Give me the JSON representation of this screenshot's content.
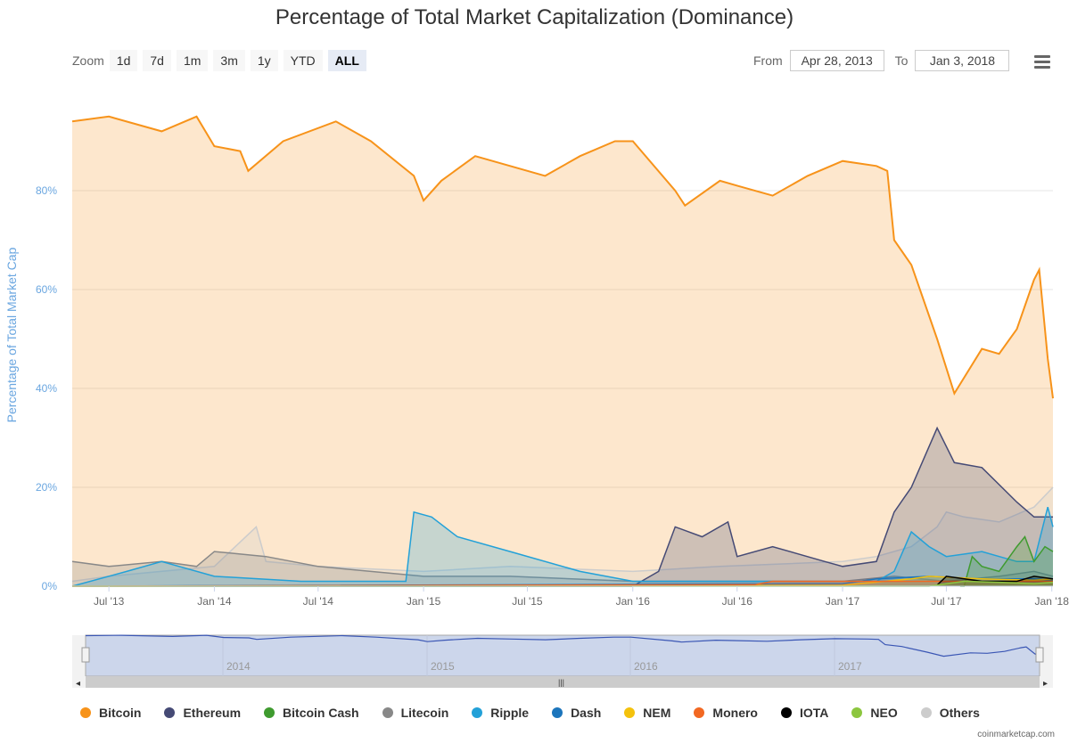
{
  "chart_title": "Percentage of Total Market Capitalization (Dominance)",
  "toolbar": {
    "zoom_label": "Zoom",
    "zoom_buttons": [
      "1d",
      "7d",
      "1m",
      "3m",
      "1y",
      "YTD",
      "ALL"
    ],
    "active_zoom": "ALL",
    "from_label": "From",
    "from_value": "Apr 28, 2013",
    "to_label": "To",
    "to_value": "Jan 3, 2018",
    "menu_icon": "hamburger-menu-icon"
  },
  "navigator": {
    "year_labels": [
      "2014",
      "2015",
      "2016",
      "2017"
    ]
  },
  "credit": "coinmarketcap.com",
  "chart_data": {
    "type": "area",
    "title": "Percentage of Total Market Capitalization (Dominance)",
    "xlabel": "",
    "ylabel": "Percentage of Total Market Cap",
    "x_range": [
      "2013-04-28",
      "2018-01-03"
    ],
    "ylim": [
      0,
      100
    ],
    "y_ticks": [
      0,
      20,
      40,
      60,
      80
    ],
    "y_tick_labels": [
      "0%",
      "20%",
      "40%",
      "60%",
      "80%"
    ],
    "x_tick_labels": [
      "Jul '13",
      "Jan '14",
      "Jul '14",
      "Jan '15",
      "Jul '15",
      "Jan '16",
      "Jul '16",
      "Jan '17",
      "Jul '17",
      "Jan '18"
    ],
    "x_tick_dates": [
      "2013-07-01",
      "2014-01-01",
      "2014-07-01",
      "2015-01-01",
      "2015-07-01",
      "2016-01-01",
      "2016-07-01",
      "2017-01-01",
      "2017-07-01",
      "2018-01-01"
    ],
    "grid": true,
    "legend_position": "bottom",
    "series": [
      {
        "name": "Bitcoin",
        "color": "#f7931a",
        "x": [
          "2013-04-28",
          "2013-07-01",
          "2013-10-01",
          "2013-12-01",
          "2014-01-01",
          "2014-02-15",
          "2014-03-01",
          "2014-05-01",
          "2014-08-01",
          "2014-10-01",
          "2014-12-15",
          "2015-01-01",
          "2015-02-01",
          "2015-04-01",
          "2015-06-01",
          "2015-08-01",
          "2015-10-01",
          "2015-12-01",
          "2016-01-01",
          "2016-03-15",
          "2016-04-01",
          "2016-06-01",
          "2016-07-01",
          "2016-09-01",
          "2016-11-01",
          "2017-01-01",
          "2017-03-01",
          "2017-03-20",
          "2017-04-01",
          "2017-05-01",
          "2017-06-15",
          "2017-07-15",
          "2017-09-01",
          "2017-10-01",
          "2017-11-01",
          "2017-12-01",
          "2017-12-10",
          "2017-12-25",
          "2018-01-03"
        ],
        "values": [
          94,
          95,
          92,
          95,
          89,
          88,
          84,
          90,
          94,
          90,
          83,
          78,
          82,
          87,
          85,
          83,
          87,
          90,
          90,
          80,
          77,
          82,
          81,
          79,
          83,
          86,
          85,
          84,
          70,
          65,
          50,
          39,
          48,
          47,
          52,
          62,
          64,
          46,
          38
        ]
      },
      {
        "name": "Ethereum",
        "color": "#454a75",
        "x": [
          "2013-04-28",
          "2015-08-01",
          "2016-01-01",
          "2016-02-15",
          "2016-03-15",
          "2016-05-01",
          "2016-06-15",
          "2016-07-01",
          "2016-09-01",
          "2016-12-01",
          "2017-01-01",
          "2017-03-01",
          "2017-04-01",
          "2017-05-01",
          "2017-06-15",
          "2017-07-15",
          "2017-09-01",
          "2017-11-01",
          "2017-12-01",
          "2018-01-03"
        ],
        "values": [
          0,
          0,
          0,
          3,
          12,
          10,
          13,
          6,
          8,
          5,
          4,
          5,
          15,
          20,
          32,
          25,
          24,
          17,
          14,
          14
        ]
      },
      {
        "name": "Bitcoin Cash",
        "color": "#3f9b2f",
        "x": [
          "2017-07-25",
          "2017-08-01",
          "2017-08-15",
          "2017-09-01",
          "2017-10-01",
          "2017-11-01",
          "2017-11-15",
          "2017-12-01",
          "2017-12-20",
          "2018-01-03"
        ],
        "values": [
          0,
          0,
          6,
          4,
          3,
          8,
          10,
          5,
          8,
          7
        ]
      },
      {
        "name": "Litecoin",
        "color": "#888888",
        "x": [
          "2013-04-28",
          "2013-07-01",
          "2013-10-01",
          "2013-12-01",
          "2014-01-01",
          "2014-04-01",
          "2014-07-01",
          "2014-10-01",
          "2015-01-01",
          "2015-06-01",
          "2016-01-01",
          "2016-06-01",
          "2017-01-01",
          "2017-04-01",
          "2017-07-01",
          "2017-10-01",
          "2017-12-01",
          "2018-01-03"
        ],
        "values": [
          5,
          4,
          5,
          4,
          7,
          6,
          4,
          3,
          2,
          2,
          1,
          1,
          1,
          2,
          1,
          2,
          3,
          2
        ]
      },
      {
        "name": "Ripple",
        "color": "#23a1d8",
        "x": [
          "2013-04-28",
          "2013-08-01",
          "2013-10-01",
          "2014-01-01",
          "2014-06-01",
          "2014-12-01",
          "2014-12-15",
          "2015-01-15",
          "2015-03-01",
          "2015-06-01",
          "2015-10-01",
          "2016-01-01",
          "2016-06-01",
          "2017-01-01",
          "2017-03-01",
          "2017-04-01",
          "2017-05-01",
          "2017-06-01",
          "2017-07-01",
          "2017-09-01",
          "2017-11-01",
          "2017-12-01",
          "2017-12-25",
          "2018-01-03"
        ],
        "values": [
          0,
          3,
          5,
          2,
          1,
          1,
          15,
          14,
          10,
          7,
          3,
          1,
          1,
          1,
          1,
          3,
          11,
          8,
          6,
          7,
          5,
          5,
          16,
          12
        ]
      },
      {
        "name": "Dash",
        "color": "#1c75bc",
        "x": [
          "2013-04-28",
          "2017-01-01",
          "2017-03-01",
          "2017-06-01",
          "2017-09-01",
          "2017-12-01",
          "2018-01-03"
        ],
        "values": [
          0,
          0.5,
          1.5,
          2,
          1.5,
          1.5,
          1.2
        ]
      },
      {
        "name": "NEM",
        "color": "#f4c20d",
        "x": [
          "2013-04-28",
          "2017-01-01",
          "2017-05-01",
          "2017-06-01",
          "2017-09-01",
          "2017-12-01",
          "2018-01-03"
        ],
        "values": [
          0,
          0.2,
          1.5,
          2,
          1.5,
          1.2,
          1.5
        ]
      },
      {
        "name": "Monero",
        "color": "#f26822",
        "x": [
          "2013-04-28",
          "2016-08-01",
          "2016-09-01",
          "2017-01-01",
          "2017-06-01",
          "2017-12-01",
          "2018-01-03"
        ],
        "values": [
          0,
          0.3,
          1,
          1,
          1,
          1,
          1
        ]
      },
      {
        "name": "IOTA",
        "color": "#000000",
        "x": [
          "2017-06-13",
          "2017-07-01",
          "2017-09-01",
          "2017-11-01",
          "2017-12-01",
          "2018-01-03"
        ],
        "values": [
          0,
          2,
          1,
          1,
          2,
          1.5
        ]
      },
      {
        "name": "NEO",
        "color": "#8cc63f",
        "x": [
          "2013-04-28",
          "2017-06-01",
          "2017-08-01",
          "2017-10-01",
          "2017-12-01",
          "2018-01-03"
        ],
        "values": [
          0,
          0,
          1,
          0.8,
          0.5,
          0.8
        ]
      },
      {
        "name": "Others",
        "color": "#cccccc",
        "x": [
          "2013-04-28",
          "2013-07-01",
          "2014-01-01",
          "2014-03-15",
          "2014-04-01",
          "2014-07-01",
          "2015-01-01",
          "2015-06-01",
          "2016-01-01",
          "2016-06-01",
          "2017-01-01",
          "2017-03-01",
          "2017-05-01",
          "2017-06-15",
          "2017-07-01",
          "2017-08-01",
          "2017-10-01",
          "2017-12-01",
          "2018-01-03"
        ],
        "values": [
          1,
          2,
          4,
          12,
          5,
          4,
          3,
          4,
          3,
          4,
          5,
          6,
          8,
          12,
          15,
          14,
          13,
          16,
          20
        ]
      }
    ]
  }
}
